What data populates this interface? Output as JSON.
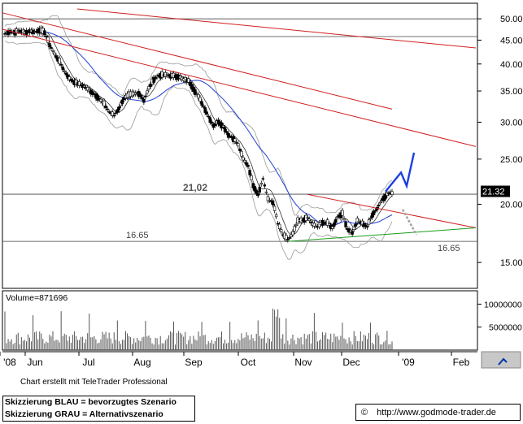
{
  "chart_data": {
    "type": "candlestick",
    "x_tick_labels": [
      "'08",
      "Jun",
      "Jul",
      "Aug",
      "Sep",
      "Oct",
      "Nov",
      "Dec",
      "'09",
      "Feb"
    ],
    "price_axis": {
      "ticks": [
        15,
        20,
        25,
        30,
        35,
        40,
        45,
        50
      ],
      "tick_labels": [
        "15.00",
        "20.00",
        "25.00",
        "30.00",
        "35.00",
        "40.00",
        "45.00",
        "50.00"
      ],
      "scale": "log"
    },
    "volume_axis": {
      "ticks": [
        5000000,
        10000000
      ],
      "tick_labels": [
        "5000000",
        "10000000"
      ]
    },
    "volume_label": "Volume=871696",
    "current_price_label": "21.32",
    "level_labels": {
      "resistance": "21,02",
      "support_left": "16.65",
      "support_right": "16.65"
    },
    "horizontal_levels": [
      50.0,
      45.8,
      21.02,
      16.65
    ],
    "price_series": [
      46.5,
      47.0,
      46.8,
      47.2,
      46.7,
      47.1,
      46.9,
      47.3,
      46.8,
      44.0,
      42.0,
      40.5,
      38.6,
      37.2,
      36.6,
      36.2,
      35.8,
      35.1,
      34.5,
      33.7,
      32.8,
      31.6,
      31.0,
      32.2,
      33.8,
      34.3,
      34.5,
      34.6,
      33.4,
      35.5,
      37.1,
      37.8,
      37.9,
      37.8,
      37.7,
      37.6,
      37.0,
      36.8,
      35.4,
      34.0,
      32.5,
      30.9,
      29.5,
      30.1,
      29.4,
      28.2,
      27.7,
      26.8,
      25.0,
      24.2,
      22.0,
      21.0,
      22.7,
      20.5,
      20.2,
      18.2,
      17.2,
      16.8,
      17.3,
      18.4,
      18.5,
      18.7,
      18.1,
      17.9,
      18.3,
      18.2,
      17.8,
      18.8,
      19.1,
      17.7,
      17.4,
      18.4,
      18.2,
      17.9,
      19.0,
      19.6,
      20.5,
      21.0,
      21.3
    ],
    "scenario_blue": {
      "label": "Skizzierung BLAU = bevorzugtes Szenario",
      "path": [
        21.3,
        23.4,
        21.9,
        25.8
      ]
    },
    "scenario_gray": {
      "label": "Skizzierung GRAU = Alternativszenario",
      "path": [
        19.5,
        17.2
      ]
    }
  },
  "footer": {
    "credit": "Chart erstellt mit TeleTrader Professional",
    "legend_blue": "Skizzierung BLAU = bevorzugtes Szenario",
    "legend_gray": "Skizzierung GRAU = Alternativszenario",
    "copyright_symbol": "©",
    "url": "http://www.godmode-trader.de"
  },
  "colors": {
    "grid": "#b0b0b0",
    "candle": "#000000",
    "ma_blue": "#1f3fd0",
    "trend_red": "#d02020",
    "support_green": "#1a9c1a",
    "bands": "#9a9a9a",
    "price_box": "#000000",
    "scenario_blue": "#1c3fe0",
    "scenario_gray": "#a0a0a0"
  }
}
